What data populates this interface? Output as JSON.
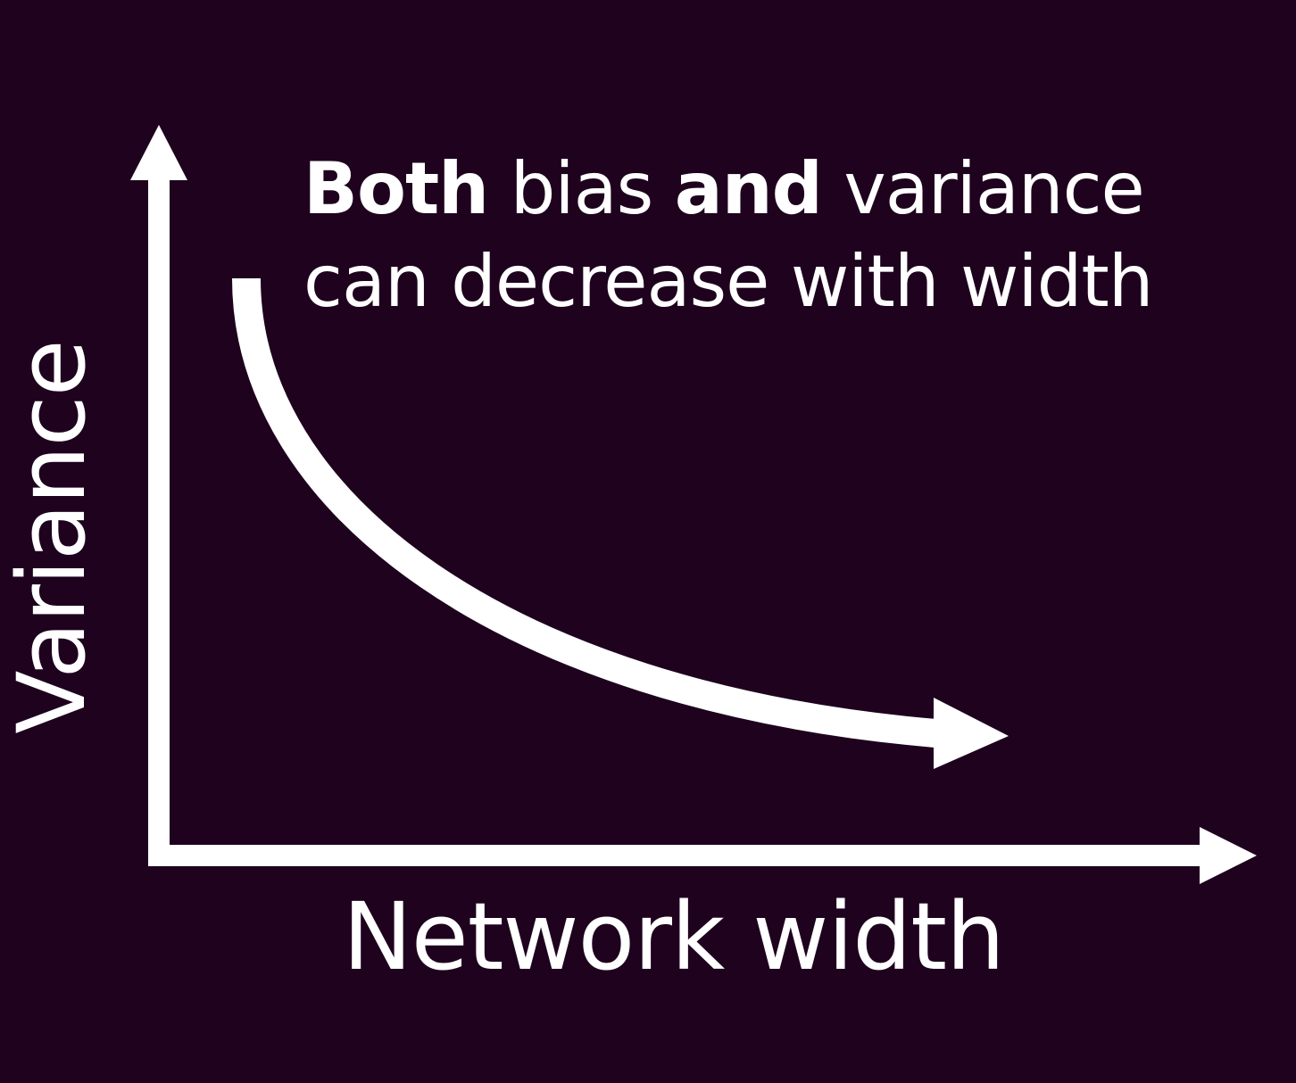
{
  "caption": {
    "line1": [
      {
        "text": "Both",
        "weight": "bold"
      },
      {
        "text": " bias ",
        "weight": "normal"
      },
      {
        "text": "and",
        "weight": "bold"
      },
      {
        "text": " variance",
        "weight": "normal"
      }
    ],
    "line2": "can decrease with width"
  },
  "axes": {
    "x_label": "Network width",
    "y_label": "Variance"
  },
  "colors": {
    "background": "#1e021e",
    "foreground": "#ffffff"
  },
  "curve": {
    "trend": "decreasing",
    "shape": "convex"
  }
}
